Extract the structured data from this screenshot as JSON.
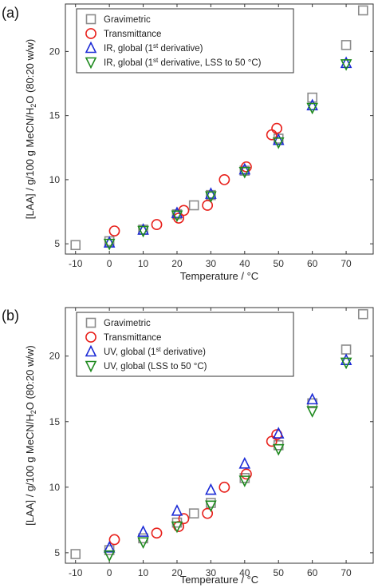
{
  "chart_data": [
    {
      "panel": "(a)",
      "type": "scatter",
      "xlabel": "Temperature / °C",
      "ylabel": "[LAA] / g/100 g MeCN/H2O (80:20 w/w)",
      "xlim": [
        -13,
        78
      ],
      "ylim": [
        4.2,
        23.7
      ],
      "xticks": [
        -10,
        0,
        10,
        20,
        30,
        40,
        50,
        60,
        70
      ],
      "yticks": [
        5,
        10,
        15,
        20
      ],
      "grid": false,
      "legend_position": "top-left",
      "series": [
        {
          "name": "Gravimetric",
          "marker": "square",
          "color": "#8c8c8c",
          "points": [
            [
              -10,
              4.9
            ],
            [
              0,
              5.2
            ],
            [
              10,
              6.1
            ],
            [
              20,
              7.3
            ],
            [
              25,
              8.0
            ],
            [
              30,
              8.8
            ],
            [
              40,
              10.7
            ],
            [
              50,
              13.2
            ],
            [
              60,
              16.4
            ],
            [
              70,
              20.5
            ],
            [
              75,
              23.2
            ]
          ]
        },
        {
          "name": "Transmittance",
          "marker": "circle",
          "color": "#e8211c",
          "points": [
            [
              1.5,
              6.0
            ],
            [
              14,
              6.5
            ],
            [
              20.5,
              7.0
            ],
            [
              22,
              7.6
            ],
            [
              29,
              8.0
            ],
            [
              34,
              10.0
            ],
            [
              40.5,
              11.0
            ],
            [
              48,
              13.5
            ],
            [
              49.5,
              14.0
            ]
          ]
        },
        {
          "name": "IR, global (1st derivative)",
          "marker": "triangle-up",
          "color": "#1c2bd6",
          "points": [
            [
              0,
              5.1
            ],
            [
              10,
              6.1
            ],
            [
              20,
              7.4
            ],
            [
              30,
              8.9
            ],
            [
              40,
              10.8
            ],
            [
              50,
              13.1
            ],
            [
              60,
              15.8
            ],
            [
              70,
              19.1
            ]
          ]
        },
        {
          "name": "IR, global (1st derivative, LSS to 50 °C)",
          "marker": "triangle-down",
          "color": "#1f8a1f",
          "points": [
            [
              0,
              5.0
            ],
            [
              10,
              6.0
            ],
            [
              20,
              7.2
            ],
            [
              30,
              8.7
            ],
            [
              40,
              10.6
            ],
            [
              50,
              12.9
            ],
            [
              60,
              15.6
            ],
            [
              70,
              19.0
            ]
          ]
        }
      ]
    },
    {
      "panel": "(b)",
      "type": "scatter",
      "xlabel": "Temperature / °C",
      "ylabel": "[LAA] / g/100 g MeCN/H2O (80:20 w/w)",
      "xlim": [
        -13,
        78
      ],
      "ylim": [
        4.2,
        23.7
      ],
      "xticks": [
        -10,
        0,
        10,
        20,
        30,
        40,
        50,
        60,
        70
      ],
      "yticks": [
        5,
        10,
        15,
        20
      ],
      "grid": false,
      "legend_position": "top-left",
      "series": [
        {
          "name": "Gravimetric",
          "marker": "square",
          "color": "#8c8c8c",
          "points": [
            [
              -10,
              4.9
            ],
            [
              0,
              5.2
            ],
            [
              10,
              6.1
            ],
            [
              20,
              7.3
            ],
            [
              25,
              8.0
            ],
            [
              30,
              8.8
            ],
            [
              40,
              10.7
            ],
            [
              50,
              13.2
            ],
            [
              60,
              16.4
            ],
            [
              70,
              20.5
            ],
            [
              75,
              23.2
            ]
          ]
        },
        {
          "name": "Transmittance",
          "marker": "circle",
          "color": "#e8211c",
          "points": [
            [
              1.5,
              6.0
            ],
            [
              14,
              6.5
            ],
            [
              20.5,
              7.0
            ],
            [
              22,
              7.6
            ],
            [
              29,
              8.0
            ],
            [
              34,
              10.0
            ],
            [
              40.5,
              11.0
            ],
            [
              48,
              13.5
            ],
            [
              49.5,
              14.0
            ]
          ]
        },
        {
          "name": "UV, global (1st derivative)",
          "marker": "triangle-up",
          "color": "#1c2bd6",
          "points": [
            [
              0,
              5.4
            ],
            [
              10,
              6.6
            ],
            [
              20,
              8.2
            ],
            [
              30,
              9.8
            ],
            [
              40,
              11.8
            ],
            [
              50,
              14.1
            ],
            [
              60,
              16.7
            ],
            [
              70,
              19.7
            ]
          ]
        },
        {
          "name": "UV, global (LSS to 50 °C)",
          "marker": "triangle-down",
          "color": "#1f8a1f",
          "points": [
            [
              0,
              4.8
            ],
            [
              10,
              5.8
            ],
            [
              20,
              7.0
            ],
            [
              30,
              8.6
            ],
            [
              40,
              10.5
            ],
            [
              50,
              12.9
            ],
            [
              60,
              15.8
            ],
            [
              70,
              19.5
            ]
          ]
        }
      ]
    }
  ]
}
